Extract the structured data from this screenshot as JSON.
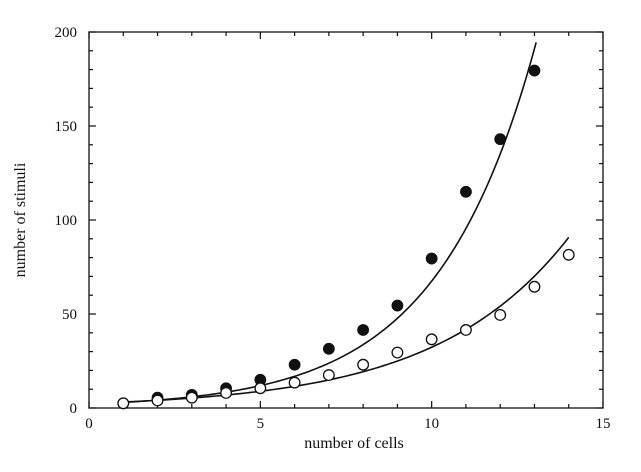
{
  "chart_data": {
    "type": "scatter",
    "title": "",
    "xlabel": "number of cells",
    "ylabel": "number of stimuli",
    "xlim": [
      0,
      15
    ],
    "ylim": [
      0,
      200
    ],
    "x_ticks": [
      0,
      5,
      10,
      15
    ],
    "y_ticks": [
      0,
      50,
      100,
      150,
      200
    ],
    "grid": false,
    "legend": "none",
    "series": [
      {
        "marker": "filled-circle",
        "x": [
          1,
          2,
          3,
          4,
          5,
          6,
          7,
          8,
          9,
          10,
          11,
          12,
          13
        ],
        "y": [
          2.5,
          5.5,
          7,
          10.5,
          15,
          23,
          31.5,
          41.5,
          54.5,
          79.5,
          115,
          143,
          179.5
        ]
      },
      {
        "marker": "open-circle",
        "x": [
          1,
          2,
          3,
          4,
          5,
          6,
          7,
          8,
          9,
          10,
          11,
          12,
          13,
          14
        ],
        "y": [
          2.5,
          4,
          5.5,
          8,
          10.5,
          13.5,
          17.5,
          23,
          29.5,
          36.5,
          41.5,
          49.5,
          64.5,
          81.5
        ]
      }
    ],
    "fit_curves": [
      {
        "series_index": 0,
        "form": "exponential",
        "a": 2.1,
        "b": 0.347,
        "x_range": [
          1,
          13.05
        ]
      },
      {
        "series_index": 1,
        "form": "exponential",
        "a": 2.45,
        "b": 0.258,
        "x_range": [
          1,
          14
        ]
      }
    ]
  }
}
